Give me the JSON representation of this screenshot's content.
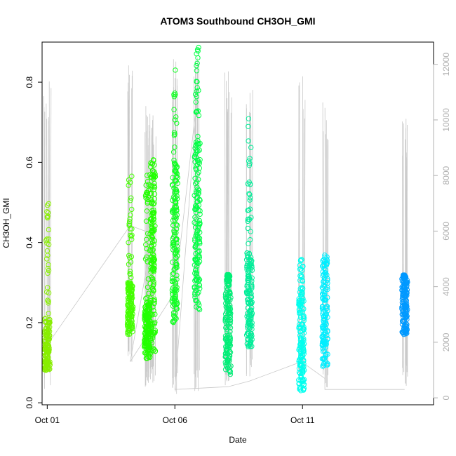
{
  "chart_data": {
    "type": "scatter",
    "title": "ATOM3 Southbound CH3OH_GMI",
    "xlabel": "Date",
    "ylabel": "CH3OH_GMI",
    "x_type": "date",
    "xlim": [
      "2017-09-30T19:10",
      "2017-10-16T03:10"
    ],
    "ylim": [
      -0.005,
      0.9
    ],
    "x_ticks": [
      "Oct 01",
      "Oct 06",
      "Oct 11"
    ],
    "x_tick_dates": [
      "2017-10-01T00:00",
      "2017-10-06T00:00",
      "2017-10-11T00:00"
    ],
    "y_ticks": [
      0.0,
      0.2,
      0.4,
      0.6,
      0.8
    ],
    "y_tick_labels": [
      "0.0",
      "0.2",
      "0.4",
      "0.6",
      "0.8"
    ],
    "y2_ticks": [
      0,
      2000,
      4000,
      6000,
      8000,
      10000,
      12000
    ],
    "y2_tick_labels": [
      "0",
      "2000",
      "4000",
      "6000",
      "8000",
      "10000",
      "12000"
    ],
    "y2_range": [
      -250,
      12800
    ],
    "grid": false,
    "legend": "none",
    "colors": {
      "altitude_trace": "#c8c8c8",
      "right_axis": "#b0b0b0"
    },
    "series": [
      {
        "time": "2017-10-01T00:00",
        "color": "#88ee00",
        "core": [
          0.08,
          0.21
        ],
        "spread": [
          0.21,
          0.52
        ],
        "alt": [
          300,
          11500
        ]
      },
      {
        "time": "2017-10-04T06:00",
        "color": "#44ff00",
        "core": [
          0.17,
          0.3
        ],
        "spread": [
          0.31,
          0.57
        ],
        "alt": [
          1200,
          12100
        ]
      },
      {
        "time": "2017-10-04T22:00",
        "color": "#22ff00",
        "core": [
          0.11,
          0.25
        ],
        "spread": [
          0.25,
          0.59
        ],
        "alt": [
          400,
          10500
        ]
      },
      {
        "time": "2017-10-05T03:00",
        "color": "#22ff00",
        "core": [
          0.12,
          0.61
        ],
        "spread": [
          0.3,
          0.61
        ],
        "alt": [
          400,
          10600
        ]
      },
      {
        "time": "2017-10-06T00:00",
        "color": "#11ff22",
        "core": [
          0.2,
          0.6
        ],
        "spread": [
          0.5,
          0.86
        ],
        "alt": [
          100,
          12300
        ]
      },
      {
        "time": "2017-10-06T21:00",
        "color": "#00ff44",
        "core": [
          0.22,
          0.65
        ],
        "spread": [
          0.62,
          0.89
        ],
        "alt": [
          200,
          12300
        ]
      },
      {
        "time": "2017-10-08T02:00",
        "color": "#00ee77",
        "core": [
          0.07,
          0.3
        ],
        "spread": [
          0.3,
          0.32
        ],
        "alt": [
          200,
          11900
        ]
      },
      {
        "time": "2017-10-08T22:00",
        "color": "#00ee99",
        "core": [
          0.14,
          0.38
        ],
        "spread": [
          0.38,
          0.71
        ],
        "alt": [
          700,
          11100
        ]
      },
      {
        "time": "2017-10-10T23:00",
        "color": "#00ffee",
        "core": [
          0.03,
          0.26
        ],
        "spread": [
          0.26,
          0.36
        ],
        "alt": [
          500,
          11600
        ]
      },
      {
        "time": "2017-10-11T21:00",
        "color": "#00eeff",
        "core": [
          0.09,
          0.37
        ],
        "spread": [
          0.37,
          0.37
        ],
        "alt": [
          300,
          10800
        ]
      },
      {
        "time": "2017-10-15T00:00",
        "color": "#0099ff",
        "core": [
          0.17,
          0.31
        ],
        "spread": [
          0.31,
          0.32
        ],
        "alt": [
          400,
          10100
        ]
      }
    ],
    "altitude_connector": [
      [
        "2017-10-01T00:00",
        1900
      ],
      [
        "2017-10-04T06:00",
        6200
      ],
      [
        "2017-10-05T03:00",
        5900
      ],
      [
        "2017-10-04T06:00",
        1300
      ],
      [
        "2017-10-06T00:00",
        3800
      ],
      [
        "2017-10-06T21:00",
        10800
      ],
      [
        "2017-10-06T00:00",
        300
      ],
      [
        "2017-10-08T02:00",
        400
      ],
      [
        "2017-10-08T22:00",
        600
      ],
      [
        "2017-10-10T23:00",
        1300
      ],
      [
        "2017-10-11T21:00",
        700
      ],
      [
        "2017-10-11T21:00",
        300
      ],
      [
        "2017-10-15T00:00",
        300
      ]
    ]
  }
}
